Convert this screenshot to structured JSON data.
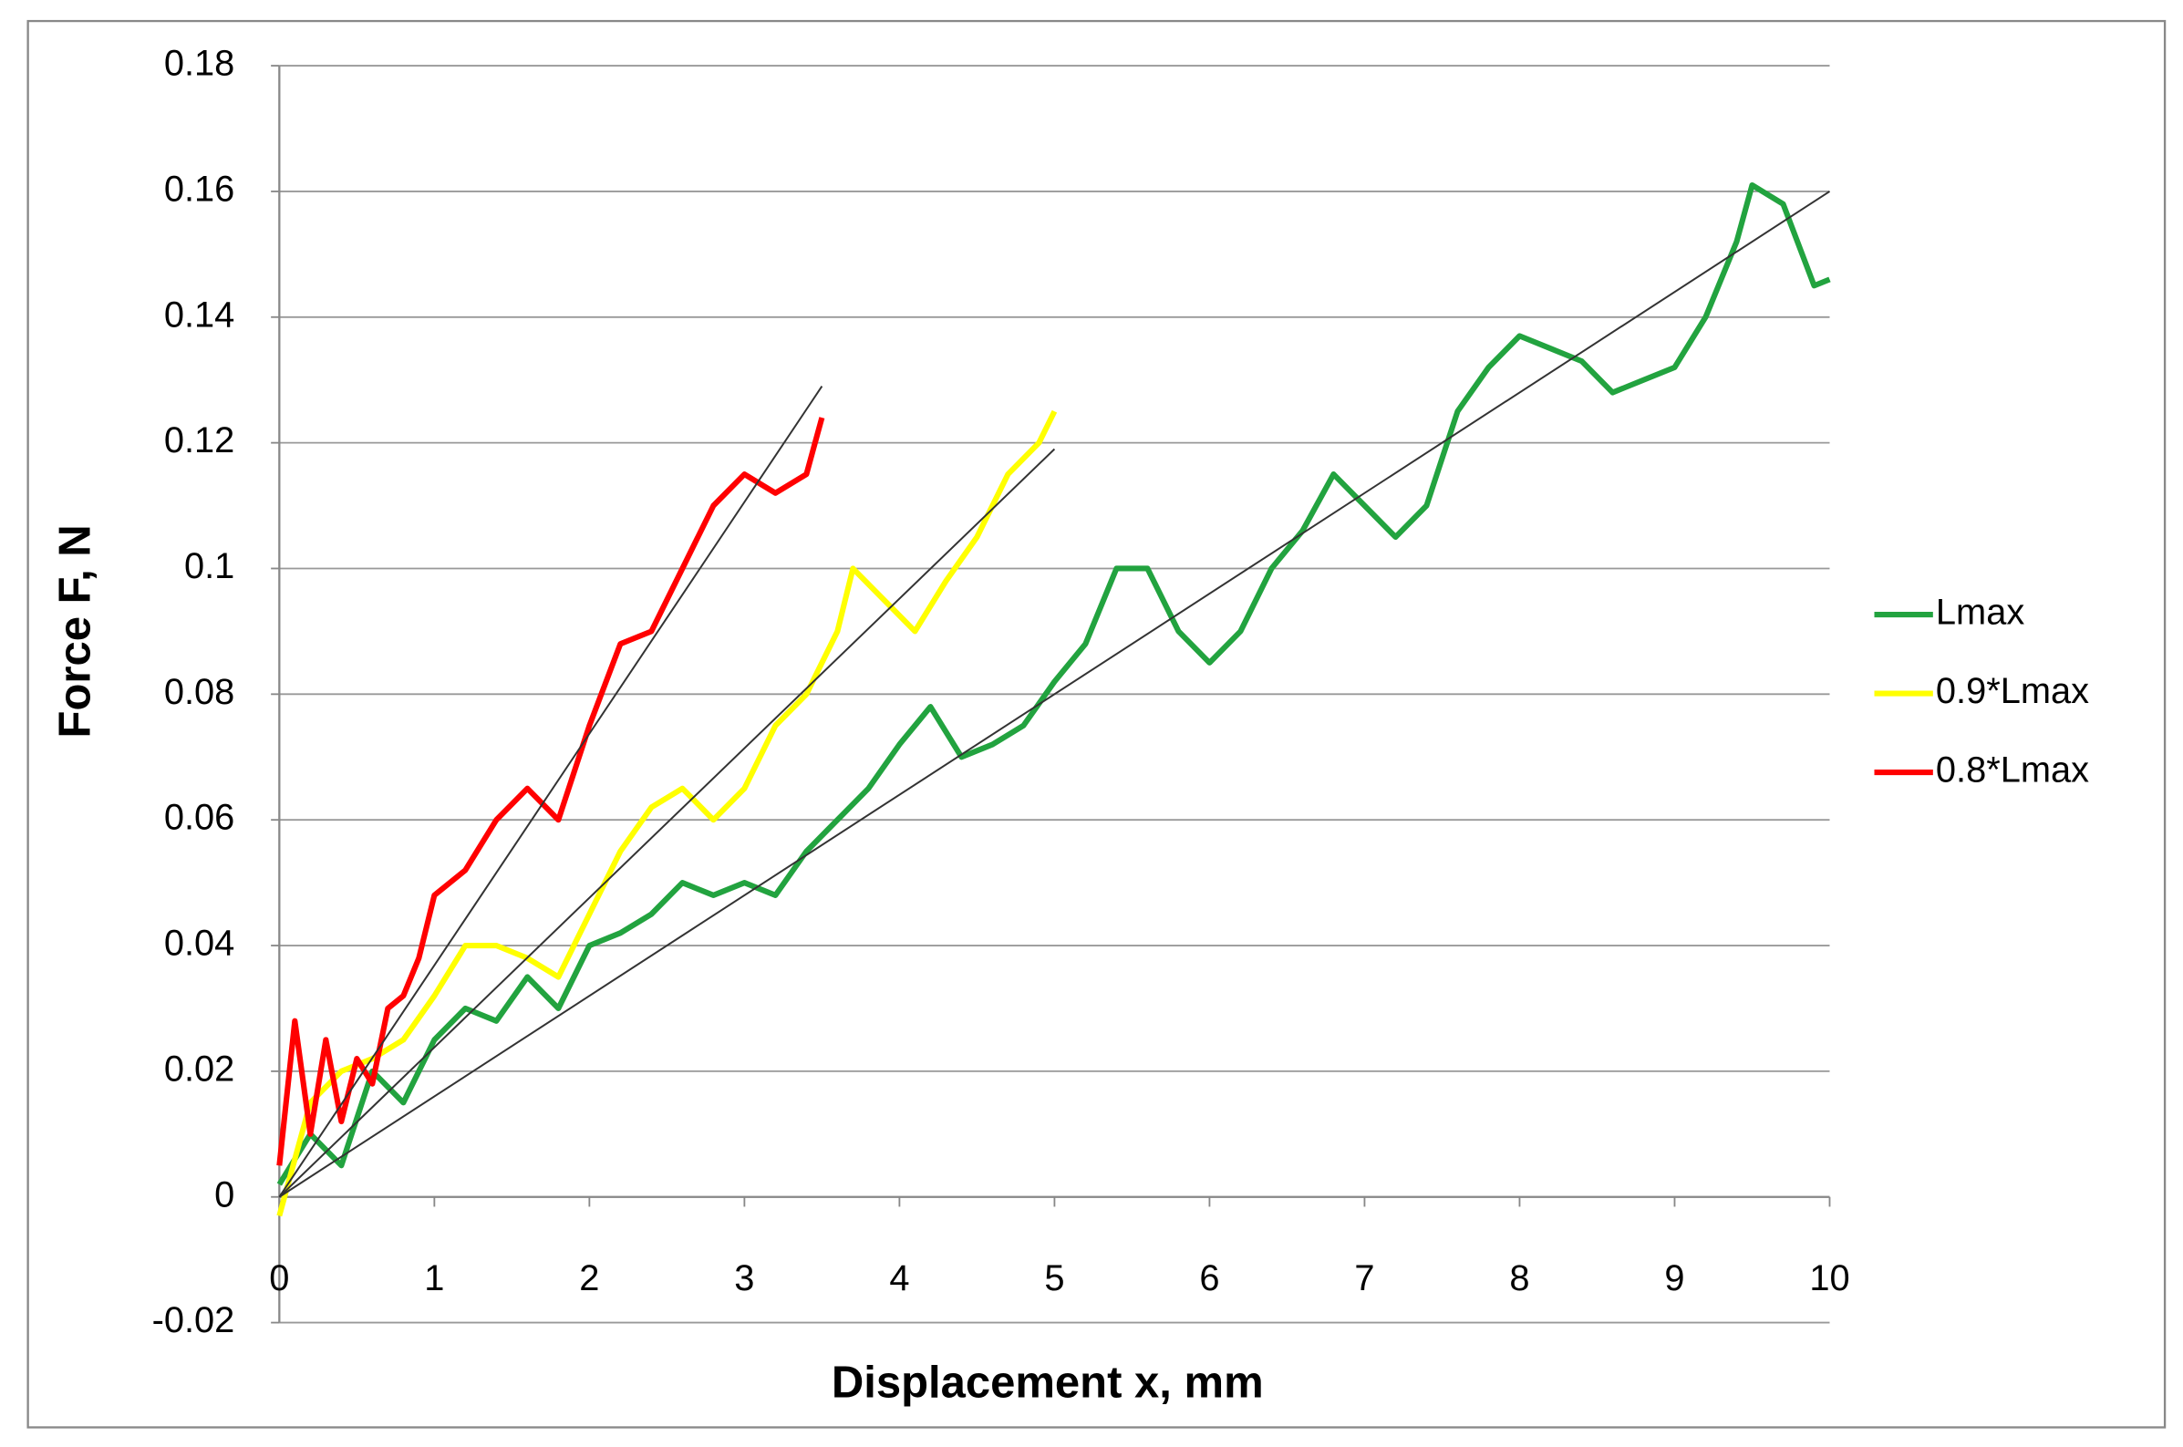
{
  "chart_data": {
    "type": "line",
    "xlabel": "Displacement x, mm",
    "ylabel": "Force  F, N",
    "xlim": [
      0,
      10
    ],
    "xticks": [
      0,
      1,
      2,
      3,
      4,
      5,
      6,
      7,
      8,
      9,
      10
    ],
    "ylim": [
      -0.02,
      0.18
    ],
    "yticks": [
      -0.02,
      0,
      0.02,
      0.04,
      0.06,
      0.08,
      0.1,
      0.12,
      0.14,
      0.16,
      0.18
    ],
    "grid": true,
    "legend": "right",
    "series": [
      {
        "name": "Lmax",
        "color": "#22a33f",
        "x": [
          0,
          0.2,
          0.4,
          0.6,
          0.8,
          1.0,
          1.2,
          1.4,
          1.6,
          1.8,
          2.0,
          2.2,
          2.4,
          2.6,
          2.8,
          3.0,
          3.2,
          3.4,
          3.6,
          3.8,
          4.0,
          4.2,
          4.4,
          4.6,
          4.8,
          5.0,
          5.2,
          5.4,
          5.6,
          5.8,
          6.0,
          6.2,
          6.4,
          6.6,
          6.8,
          7.0,
          7.2,
          7.4,
          7.6,
          7.8,
          8.0,
          8.2,
          8.4,
          8.6,
          8.8,
          9.0,
          9.2,
          9.4,
          9.5,
          9.7,
          9.9,
          10.0
        ],
        "values": [
          0.002,
          0.01,
          0.005,
          0.02,
          0.015,
          0.025,
          0.03,
          0.028,
          0.035,
          0.03,
          0.04,
          0.042,
          0.045,
          0.05,
          0.048,
          0.05,
          0.048,
          0.055,
          0.06,
          0.065,
          0.072,
          0.078,
          0.07,
          0.072,
          0.075,
          0.082,
          0.088,
          0.1,
          0.1,
          0.09,
          0.085,
          0.09,
          0.1,
          0.106,
          0.115,
          0.11,
          0.105,
          0.11,
          0.125,
          0.132,
          0.137,
          0.135,
          0.133,
          0.128,
          0.13,
          0.132,
          0.14,
          0.152,
          0.161,
          0.158,
          0.145,
          0.146
        ]
      },
      {
        "name": "0.9*Lmax",
        "color": "#ffff00",
        "x": [
          0,
          0.2,
          0.4,
          0.6,
          0.8,
          1.0,
          1.2,
          1.4,
          1.6,
          1.8,
          2.0,
          2.2,
          2.4,
          2.6,
          2.8,
          3.0,
          3.2,
          3.4,
          3.6,
          3.7,
          3.9,
          4.1,
          4.3,
          4.5,
          4.7,
          4.9,
          5.0
        ],
        "values": [
          -0.003,
          0.015,
          0.02,
          0.022,
          0.025,
          0.032,
          0.04,
          0.04,
          0.038,
          0.035,
          0.045,
          0.055,
          0.062,
          0.065,
          0.06,
          0.065,
          0.075,
          0.08,
          0.09,
          0.1,
          0.095,
          0.09,
          0.098,
          0.105,
          0.115,
          0.12,
          0.125
        ]
      },
      {
        "name": "0.8*Lmax",
        "color": "#ff0000",
        "x": [
          0,
          0.1,
          0.2,
          0.3,
          0.4,
          0.5,
          0.6,
          0.7,
          0.8,
          0.9,
          1.0,
          1.2,
          1.4,
          1.6,
          1.8,
          2.0,
          2.2,
          2.4,
          2.6,
          2.8,
          3.0,
          3.2,
          3.4,
          3.5
        ],
        "values": [
          0.005,
          0.028,
          0.01,
          0.025,
          0.012,
          0.022,
          0.018,
          0.03,
          0.032,
          0.038,
          0.048,
          0.052,
          0.06,
          0.065,
          0.06,
          0.075,
          0.088,
          0.09,
          0.1,
          0.11,
          0.115,
          0.112,
          0.115,
          0.124
        ]
      }
    ],
    "trendlines": [
      {
        "x": [
          0,
          10
        ],
        "values": [
          0,
          0.16
        ]
      },
      {
        "x": [
          0,
          5
        ],
        "values": [
          0,
          0.119
        ]
      },
      {
        "x": [
          0,
          3.5
        ],
        "values": [
          0,
          0.129
        ]
      }
    ]
  }
}
